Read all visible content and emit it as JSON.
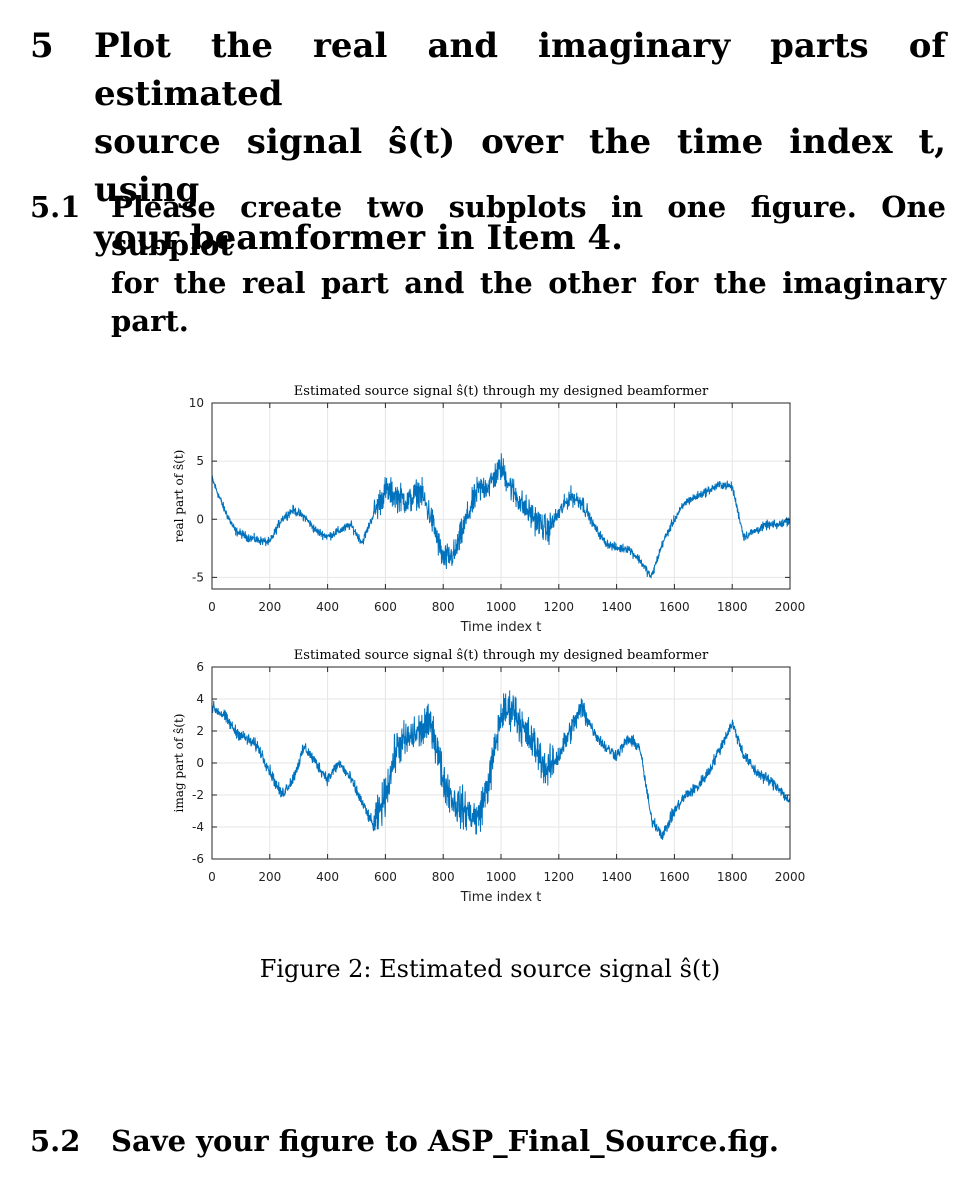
{
  "section5": {
    "number": "5",
    "line1": "Plot the real and imaginary parts of estimated",
    "line2": "source signal ŝ(t) over the time index t, using",
    "line3": "your beamformer in Item 4."
  },
  "section5_1": {
    "number": "5.1",
    "line1": "Please create two subplots in one figure. One subplot",
    "line2": "for the real part and the other for the imaginary part."
  },
  "section5_2": {
    "number": "5.2",
    "text": "Save your figure to ASP_Final_Source.fig."
  },
  "figure": {
    "caption": "Figure 2: Estimated source signal ŝ(t)"
  },
  "chart_data": [
    {
      "type": "line",
      "title": "Estimated source signal ŝ(t) through my designed beamformer",
      "xlabel": "Time index t",
      "ylabel": "real part of ŝ(t)",
      "xlim": [
        0,
        2000
      ],
      "ylim": [
        -6,
        10
      ],
      "xticks": [
        0,
        200,
        400,
        600,
        800,
        1000,
        1200,
        1400,
        1600,
        1800,
        2000
      ],
      "yticks": [
        -5,
        0,
        5,
        10
      ],
      "grid": true,
      "color": "#0072bd",
      "x": [
        0,
        40,
        80,
        120,
        160,
        200,
        240,
        280,
        320,
        360,
        400,
        440,
        480,
        520,
        560,
        600,
        640,
        680,
        720,
        760,
        800,
        840,
        880,
        920,
        960,
        1000,
        1040,
        1080,
        1120,
        1160,
        1200,
        1240,
        1280,
        1320,
        1360,
        1400,
        1440,
        1480,
        1520,
        1560,
        1600,
        1640,
        1680,
        1720,
        1760,
        1800,
        1840,
        1880,
        1920,
        1960,
        2000
      ],
      "y": [
        3.5,
        1,
        -1,
        -1.5,
        -1.8,
        -2,
        0,
        0.8,
        0.2,
        -1,
        -1.5,
        -1,
        -0.5,
        -2,
        0.5,
        2.5,
        2,
        1.5,
        2.5,
        0,
        -3.5,
        -3,
        0,
        2.5,
        3,
        4.5,
        2.5,
        1,
        0,
        -1,
        0.5,
        2,
        1.5,
        -0.5,
        -2,
        -2.5,
        -2.5,
        -3.5,
        -5,
        -2,
        0,
        1.5,
        2,
        2.5,
        3,
        2.8,
        -1.5,
        -1,
        -0.5,
        -0.5,
        0
      ]
    },
    {
      "type": "line",
      "title": "Estimated source signal ŝ(t) through my designed beamformer",
      "xlabel": "Time index t",
      "ylabel": "imag part of ŝ(t)",
      "xlim": [
        0,
        2000
      ],
      "ylim": [
        -6,
        6
      ],
      "xticks": [
        0,
        200,
        400,
        600,
        800,
        1000,
        1200,
        1400,
        1600,
        1800,
        2000
      ],
      "yticks": [
        -6,
        -4,
        -2,
        0,
        2,
        4,
        6
      ],
      "grid": true,
      "color": "#0072bd",
      "x": [
        0,
        40,
        80,
        120,
        160,
        200,
        240,
        280,
        320,
        360,
        400,
        440,
        480,
        520,
        560,
        600,
        640,
        680,
        720,
        760,
        800,
        840,
        880,
        920,
        960,
        1000,
        1040,
        1080,
        1120,
        1160,
        1200,
        1240,
        1280,
        1320,
        1360,
        1400,
        1440,
        1480,
        1520,
        1560,
        1600,
        1640,
        1680,
        1720,
        1760,
        1800,
        1840,
        1880,
        1920,
        1960,
        2000
      ],
      "y": [
        3.5,
        3,
        2,
        1.5,
        1,
        -0.5,
        -2,
        -1,
        1,
        0,
        -1,
        0,
        -1,
        -2.5,
        -4,
        -2,
        1,
        1.5,
        2,
        2.5,
        -1,
        -2.5,
        -3,
        -3.5,
        -1,
        3,
        3.5,
        2,
        1,
        -0.5,
        0.5,
        2,
        3.5,
        2,
        1,
        0.5,
        1.5,
        1,
        -3.5,
        -4.5,
        -3,
        -2,
        -1.5,
        -0.5,
        1,
        2.5,
        0.5,
        -0.5,
        -1,
        -1.5,
        -2.5
      ]
    }
  ]
}
